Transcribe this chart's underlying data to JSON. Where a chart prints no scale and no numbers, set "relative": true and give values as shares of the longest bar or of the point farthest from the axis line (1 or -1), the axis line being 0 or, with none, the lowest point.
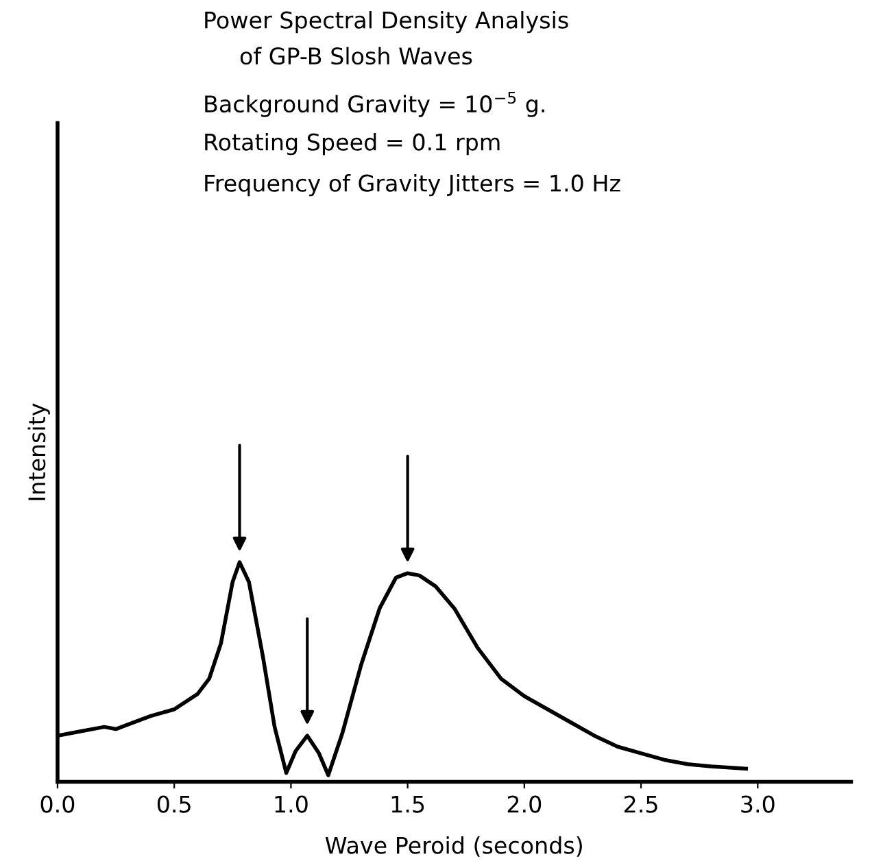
{
  "chart_data": {
    "type": "line",
    "title": "Power Spectral Density Analysis\n     of GP-B Slosh Waves",
    "annotations": [
      "Background Gravity = 10$^{−5}$ g.",
      "Rotating Speed = 0.1 rpm",
      "Frequency of Gravity Jitters = 1.0 Hz"
    ],
    "xlabel": "Wave Peroid (seconds)",
    "ylabel": "Intensity",
    "relative": true,
    "xlim": [
      0,
      3.4
    ],
    "xticks": [
      {
        "value": 0,
        "label": "0.0"
      },
      0.5,
      {
        "value": 1,
        "label": "1.0"
      },
      1.5,
      {
        "value": 2,
        "label": "2.0"
      },
      2.5,
      {
        "value": 3,
        "label": "3.0"
      }
    ],
    "tick_labels": "x",
    "series": [
      {
        "color": "#000000",
        "x": [
          0,
          0.1,
          0.2,
          0.25,
          0.3,
          0.4,
          0.5,
          0.6,
          0.65,
          0.7,
          0.75,
          0.78,
          0.82,
          0.88,
          0.93,
          0.98,
          1.02,
          1.07,
          1.12,
          1.16,
          1.22,
          1.3,
          1.38,
          1.45,
          1.5,
          1.55,
          1.62,
          1.7,
          1.8,
          1.9,
          2.0,
          2.1,
          2.2,
          2.3,
          2.4,
          2.5,
          2.6,
          2.7,
          2.8,
          2.95
        ],
        "values": [
          0.21,
          0.23,
          0.25,
          0.24,
          0.26,
          0.3,
          0.33,
          0.4,
          0.47,
          0.63,
          0.91,
          1.0,
          0.91,
          0.57,
          0.25,
          0.04,
          0.14,
          0.21,
          0.13,
          0.03,
          0.22,
          0.53,
          0.79,
          0.93,
          0.95,
          0.94,
          0.89,
          0.79,
          0.61,
          0.47,
          0.39,
          0.33,
          0.27,
          0.21,
          0.16,
          0.13,
          0.1,
          0.08,
          0.07,
          0.06
        ]
      }
    ]
  }
}
